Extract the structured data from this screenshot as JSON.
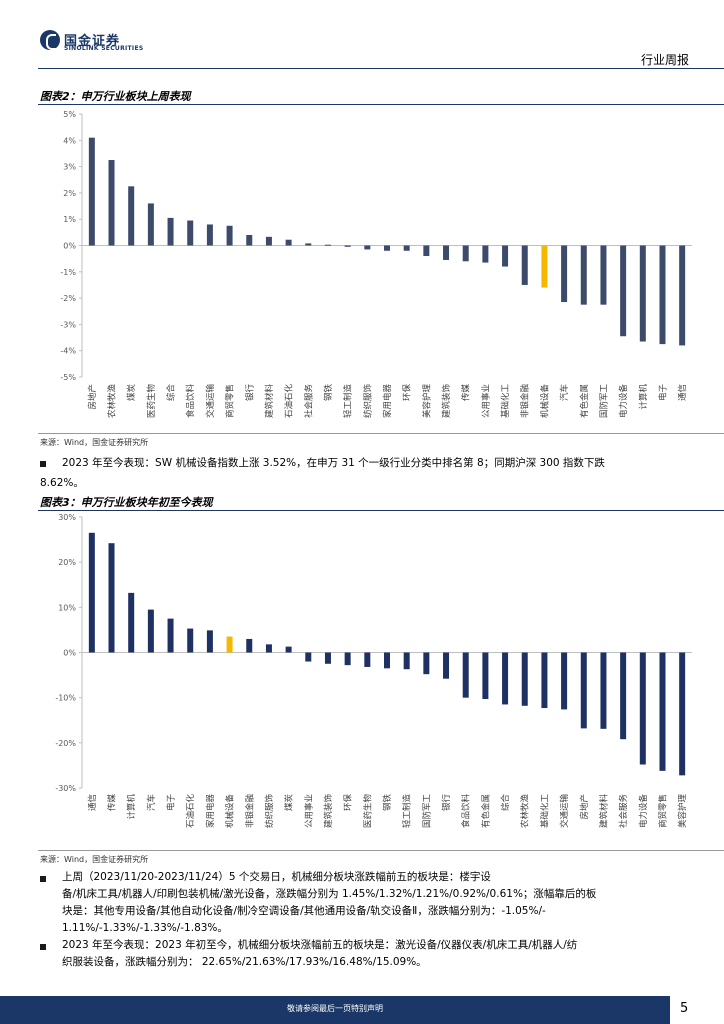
{
  "header": {
    "logo_cn": "国金证券",
    "logo_en": "SINOLINK SECURITIES",
    "section": "行业周报"
  },
  "figure2": {
    "title": "图表2：申万行业板块上周表现",
    "source": "来源：Wind，国金证券研究所"
  },
  "figure3": {
    "title": "图表3：申万行业板块年初至今表现",
    "source": "来源：Wind，国金证券研究所"
  },
  "paragraphs": {
    "p1_line1": "2023 年至今表现：SW 机械设备指数上涨 3.52%，在申万 31 个一级行业分类中排名第 8；同期沪深 300 指数下跌",
    "p1_line2": "8.62%。",
    "p2_line1": "上周（2023/11/20-2023/11/24）5 个交易日，机械细分板块涨跌幅前五的板块是：楼宇设",
    "p2_line2": "备/机床工具/机器人/印刷包装机械/激光设备，涨跌幅分别为 1.45%/1.32%/1.21%/0.92%/0.61%；涨幅靠后的板",
    "p2_line3": "块是：其他专用设备/其他自动化设备/制冷空调设备/其他通用设备/轨交设备Ⅱ，涨跌幅分别为：-1.05%/-",
    "p2_line4": "1.11%/-1.33%/-1.33%/-1.83%。",
    "p3_line1": "2023 年至今表现：2023 年初至今，机械细分板块涨幅前五的板块是：激光设备/仪器仪表/机床工具/机器人/纺",
    "p3_line2": "织服装设备，涨跌幅分别为：  22.65%/21.63%/17.93%/16.48%/15.09%。"
  },
  "footer": {
    "disclaimer": "敬请参阅最后一页特别声明",
    "page": "5"
  },
  "colors": {
    "navy": "#3d4b6b",
    "navy_dark": "#1f3163",
    "highlight": "#f5b800",
    "brand": "#1a3768"
  },
  "chart_data": [
    {
      "type": "bar",
      "categories": [
        "房地产",
        "农林牧渔",
        "煤炭",
        "医药生物",
        "综合",
        "食品饮料",
        "交通运输",
        "商贸零售",
        "银行",
        "建筑材料",
        "石油石化",
        "社会服务",
        "钢铁",
        "轻工制造",
        "纺织服饰",
        "家用电器",
        "环保",
        "美容护理",
        "建筑装饰",
        "传媒",
        "公用事业",
        "基础化工",
        "非银金融",
        "机械设备",
        "汽车",
        "有色金属",
        "国防军工",
        "电力设备",
        "计算机",
        "电子",
        "通信"
      ],
      "values": [
        4.1,
        3.25,
        2.25,
        1.6,
        1.05,
        0.95,
        0.8,
        0.75,
        0.4,
        0.33,
        0.22,
        0.08,
        0.03,
        -0.05,
        -0.15,
        -0.2,
        -0.2,
        -0.4,
        -0.55,
        -0.6,
        -0.65,
        -0.8,
        -1.5,
        -1.6,
        -2.15,
        -2.25,
        -2.25,
        -3.45,
        -3.65,
        -3.75,
        -3.8
      ],
      "highlight": "机械设备",
      "ylim": [
        -5,
        5
      ],
      "yticks": [
        "5%",
        "4%",
        "3%",
        "2%",
        "1%",
        "0%",
        "-1%",
        "-2%",
        "-3%",
        "-4%",
        "-5%"
      ],
      "ytick_values": [
        5,
        4,
        3,
        2,
        1,
        0,
        -1,
        -2,
        -3,
        -4,
        -5
      ],
      "grid": false
    },
    {
      "type": "bar",
      "categories": [
        "通信",
        "传媒",
        "计算机",
        "汽车",
        "电子",
        "石油石化",
        "家用电器",
        "机械设备",
        "非银金融",
        "纺织服饰",
        "煤炭",
        "公用事业",
        "建筑装饰",
        "环保",
        "医药生物",
        "钢铁",
        "轻工制造",
        "国防军工",
        "银行",
        "食品饮料",
        "有色金属",
        "综合",
        "农林牧渔",
        "基础化工",
        "交通运输",
        "房地产",
        "建筑材料",
        "社会服务",
        "电力设备",
        "商贸零售",
        "美容护理"
      ],
      "values": [
        26.5,
        24.2,
        13.2,
        9.5,
        7.5,
        5.3,
        4.9,
        3.52,
        3.0,
        1.8,
        1.3,
        -2.0,
        -2.5,
        -2.8,
        -3.2,
        -3.5,
        -3.7,
        -4.8,
        -5.8,
        -10.0,
        -10.3,
        -11.5,
        -11.8,
        -12.3,
        -12.6,
        -16.8,
        -16.9,
        -19.2,
        -24.8,
        -26.2,
        -27.2
      ],
      "highlight": "机械设备",
      "ylim": [
        -30,
        30
      ],
      "yticks": [
        "30%",
        "20%",
        "10%",
        "0%",
        "-10%",
        "-20%",
        "-30%"
      ],
      "ytick_values": [
        30,
        20,
        10,
        0,
        -10,
        -20,
        -30
      ],
      "grid": false
    }
  ]
}
